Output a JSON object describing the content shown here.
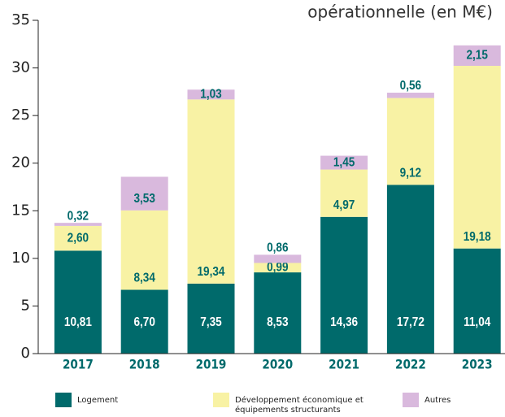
{
  "chart_data": {
    "type": "stacked_bar",
    "title": "opérationnelle (en M€)",
    "categories": [
      "2017",
      "2018",
      "2019",
      "2020",
      "2021",
      "2022",
      "2023"
    ],
    "series": [
      {
        "name": "Logement",
        "color": "#006a6b",
        "values": [
          10.81,
          6.7,
          7.35,
          8.53,
          14.36,
          17.72,
          11.04
        ],
        "value_labels": [
          "10,81",
          "6,70",
          "7,35",
          "8,53",
          "14,36",
          "17,72",
          "11,04"
        ]
      },
      {
        "name": "Développement économique et équipements structurants",
        "color": "#f8f2a4",
        "values": [
          2.6,
          8.34,
          19.34,
          0.99,
          4.97,
          9.12,
          19.18
        ],
        "value_labels": [
          "2,60",
          "8,34",
          "19,34",
          "0,99",
          "4,97",
          "9,12",
          "19,18"
        ]
      },
      {
        "name": "Autres",
        "color": "#d9b9dd",
        "values": [
          0.32,
          3.53,
          1.03,
          0.86,
          1.45,
          0.56,
          2.15
        ],
        "value_labels": [
          "0,32",
          "3,53",
          "1,03",
          "0,86",
          "1,45",
          "0,56",
          "2,15"
        ]
      }
    ],
    "ylim": [
      0,
      35
    ],
    "yticks": [
      0,
      5,
      10,
      15,
      20,
      25,
      30,
      35
    ]
  }
}
